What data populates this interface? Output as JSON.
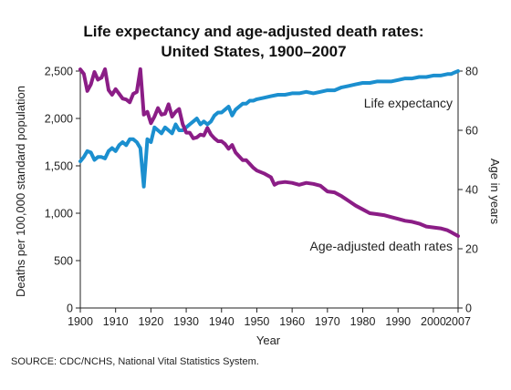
{
  "chart_data": {
    "type": "line",
    "title": [
      "Life expectancy and age-adjusted death rates:",
      "United States, 1900–2007"
    ],
    "xlabel": "Year",
    "ylabel_left": "Deaths per 100,000 standard population",
    "ylabel_right": "Age in years",
    "xlim": [
      1900,
      2007
    ],
    "ylim_left": [
      0,
      2500
    ],
    "ylim_right": [
      0,
      80
    ],
    "x_ticks": [
      1900,
      1910,
      1920,
      1930,
      1940,
      1950,
      1960,
      1970,
      1980,
      1990,
      2000,
      2007
    ],
    "x_tick_labels": [
      "1900",
      "1910",
      "1920",
      "1930",
      "1940",
      "1950",
      "1960",
      "1970",
      "1980",
      "1990",
      "2000",
      "2007"
    ],
    "y_ticks_left": [
      0,
      500,
      1000,
      1500,
      2000,
      2500
    ],
    "y_tick_labels_left": [
      "0",
      "500",
      "1,000",
      "1,500",
      "2,000",
      "2,500"
    ],
    "y_ticks_right": [
      0,
      20,
      40,
      60,
      80
    ],
    "y_tick_labels_right": [
      "0",
      "20",
      "40",
      "60",
      "80"
    ],
    "series": [
      {
        "name": "Life expectancy",
        "axis": "right",
        "color": "#1b8fcf",
        "x": [
          1900,
          1901,
          1902,
          1903,
          1904,
          1905,
          1906,
          1907,
          1908,
          1909,
          1910,
          1911,
          1912,
          1913,
          1914,
          1915,
          1916,
          1917,
          1918,
          1919,
          1920,
          1921,
          1922,
          1923,
          1924,
          1925,
          1926,
          1927,
          1928,
          1929,
          1930,
          1931,
          1932,
          1933,
          1934,
          1935,
          1936,
          1937,
          1938,
          1939,
          1940,
          1941,
          1942,
          1943,
          1944,
          1945,
          1946,
          1947,
          1948,
          1949,
          1950,
          1952,
          1954,
          1956,
          1958,
          1960,
          1962,
          1964,
          1966,
          1968,
          1970,
          1972,
          1974,
          1976,
          1978,
          1980,
          1982,
          1984,
          1986,
          1988,
          1990,
          1992,
          1994,
          1996,
          1998,
          2000,
          2002,
          2004,
          2005,
          2006,
          2007
        ],
        "values": [
          49.5,
          51,
          53,
          52.5,
          50,
          51,
          51,
          50.5,
          53,
          54,
          53,
          55,
          56,
          55,
          57,
          57,
          56,
          54,
          41,
          57,
          56,
          61,
          60,
          59,
          61,
          60,
          59,
          62,
          60,
          60,
          61,
          62,
          63,
          64,
          62,
          63,
          62,
          63,
          65,
          66,
          66,
          67,
          68,
          65,
          67,
          68,
          69,
          69,
          70,
          70,
          70.5,
          71,
          71.5,
          72,
          72,
          72.5,
          72.5,
          73,
          72.5,
          73,
          73.5,
          73.5,
          74.5,
          75,
          75.5,
          76,
          76,
          76.5,
          76.5,
          76.5,
          77,
          77.5,
          77.5,
          78,
          78,
          78.5,
          78.5,
          79,
          79,
          79.5,
          80
        ]
      },
      {
        "name": "Age-adjusted death rates",
        "axis": "left",
        "color": "#8b1d86",
        "x": [
          1900,
          1901,
          1902,
          1903,
          1904,
          1905,
          1906,
          1907,
          1908,
          1909,
          1910,
          1911,
          1912,
          1913,
          1914,
          1915,
          1916,
          1917,
          1918,
          1919,
          1920,
          1921,
          1922,
          1923,
          1924,
          1925,
          1926,
          1927,
          1928,
          1929,
          1930,
          1931,
          1932,
          1933,
          1934,
          1935,
          1936,
          1937,
          1938,
          1939,
          1940,
          1941,
          1942,
          1943,
          1944,
          1945,
          1946,
          1947,
          1948,
          1949,
          1950,
          1952,
          1954,
          1955,
          1956,
          1958,
          1960,
          1962,
          1964,
          1966,
          1968,
          1970,
          1972,
          1974,
          1976,
          1978,
          1980,
          1982,
          1984,
          1986,
          1988,
          1990,
          1992,
          1994,
          1996,
          1998,
          2000,
          2002,
          2004,
          2005,
          2006,
          2007
        ],
        "values": [
          2518,
          2470,
          2290,
          2360,
          2490,
          2410,
          2430,
          2520,
          2300,
          2250,
          2310,
          2260,
          2210,
          2200,
          2170,
          2260,
          2280,
          2520,
          2040,
          2070,
          1950,
          2020,
          2110,
          2040,
          2050,
          2150,
          2020,
          2070,
          2100,
          1940,
          1850,
          1850,
          1790,
          1800,
          1830,
          1820,
          1900,
          1830,
          1790,
          1760,
          1760,
          1730,
          1680,
          1720,
          1640,
          1600,
          1560,
          1560,
          1520,
          1480,
          1450,
          1420,
          1380,
          1300,
          1320,
          1330,
          1320,
          1300,
          1320,
          1310,
          1290,
          1230,
          1220,
          1180,
          1130,
          1080,
          1040,
          1000,
          990,
          980,
          960,
          940,
          920,
          910,
          890,
          860,
          850,
          840,
          820,
          800,
          780,
          760
        ]
      }
    ],
    "annotations": [
      {
        "text": "Life expectancy",
        "series": "Life expectancy"
      },
      {
        "text": "Age-adjusted death rates",
        "series": "Age-adjusted death rates"
      }
    ],
    "grid": false
  },
  "footer": {
    "source": "SOURCE: CDC/NCHS, National Vital Statistics System."
  }
}
